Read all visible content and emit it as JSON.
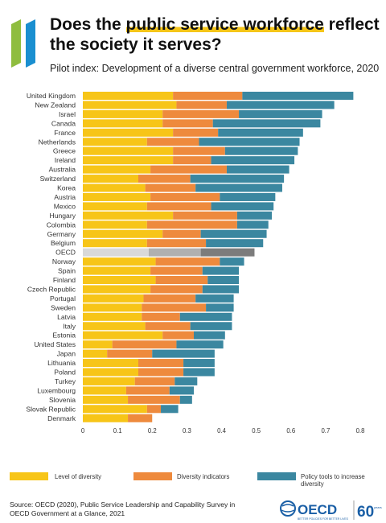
{
  "title": {
    "part1": "Does the ",
    "highlight": "public service workforce",
    "part2": " reflect the society it serves?"
  },
  "subtitle": "Pilot index: Development of a diverse central government workforce, 2020",
  "colors": {
    "level": "#f7c518",
    "indicators": "#ee8a3d",
    "policy": "#3b87a0",
    "oecd_level": "#d9d9d9",
    "oecd_indicators": "#b0b0b0",
    "oecd_policy": "#7c7c7c",
    "logo_green": "#8fbd3f",
    "logo_blue": "#1a8fd0"
  },
  "chart_data": {
    "type": "bar",
    "orientation": "horizontal",
    "stacked": true,
    "categories": [
      "United Kingdom",
      "New Zealand",
      "Israel",
      "Canada",
      "France",
      "Netherlands",
      "Greece",
      "Ireland",
      "Australia",
      "Switzerland",
      "Korea",
      "Austria",
      "Mexico",
      "Hungary",
      "Colombia",
      "Germany",
      "Belgium",
      "OECD",
      "Norway",
      "Spain",
      "Finland",
      "Czech Republic",
      "Portugal",
      "Sweden",
      "Latvia",
      "Italy",
      "Estonia",
      "United States",
      "Japan",
      "Lithuania",
      "Poland",
      "Turkey",
      "Luxembourg",
      "Slovenia",
      "Slovak Republic",
      "Denmark"
    ],
    "series": [
      {
        "name": "Level of diversity",
        "values": [
          0.26,
          0.27,
          0.23,
          0.23,
          0.26,
          0.185,
          0.26,
          0.26,
          0.195,
          0.16,
          0.18,
          0.195,
          0.185,
          0.26,
          0.185,
          0.23,
          0.185,
          0.19,
          0.21,
          0.195,
          0.21,
          0.195,
          0.175,
          0.17,
          0.17,
          0.18,
          0.23,
          0.085,
          0.07,
          0.16,
          0.16,
          0.15,
          0.125,
          0.13,
          0.185,
          0.13
        ]
      },
      {
        "name": "Diversity indicators",
        "values": [
          0.2,
          0.145,
          0.22,
          0.145,
          0.13,
          0.15,
          0.15,
          0.11,
          0.22,
          0.15,
          0.145,
          0.2,
          0.185,
          0.185,
          0.26,
          0.11,
          0.17,
          0.15,
          0.185,
          0.15,
          0.15,
          0.15,
          0.15,
          0.185,
          0.11,
          0.13,
          0.09,
          0.185,
          0.13,
          0.13,
          0.13,
          0.115,
          0.125,
          0.15,
          0.04,
          0.07
        ]
      },
      {
        "name": "Policy tools to increase diversity",
        "values": [
          0.32,
          0.31,
          0.24,
          0.31,
          0.245,
          0.29,
          0.21,
          0.24,
          0.18,
          0.27,
          0.25,
          0.16,
          0.18,
          0.1,
          0.09,
          0.19,
          0.165,
          0.155,
          0.07,
          0.105,
          0.09,
          0.105,
          0.11,
          0.08,
          0.15,
          0.12,
          0.09,
          0.135,
          0.18,
          0.09,
          0.09,
          0.065,
          0.07,
          0.035,
          0.05,
          0.0
        ]
      }
    ],
    "highlight_category": "OECD",
    "xlim": [
      0,
      0.8
    ],
    "xticks": [
      "0",
      "0.1",
      "0.2",
      "0.3",
      "0.4",
      "0.5",
      "0.6",
      "0.7",
      "0.8"
    ],
    "grid": false,
    "legend_position": "bottom"
  },
  "legend": [
    {
      "label": "Level of diversity",
      "color_key": "level"
    },
    {
      "label": "Diversity indicators",
      "color_key": "indicators"
    },
    {
      "label": "Policy tools to increase diversity",
      "color_key": "policy"
    }
  ],
  "source": {
    "line1": "Source: OECD (2020), Public Service Leadership and Capability Survey in",
    "line2": "OECD Government at a Glance, 2021"
  },
  "logo": {
    "text": "OECD",
    "tagline": "BETTER POLICIES FOR BETTER LIVES",
    "anniversary": "60",
    "anniversary_suffix": "years"
  }
}
